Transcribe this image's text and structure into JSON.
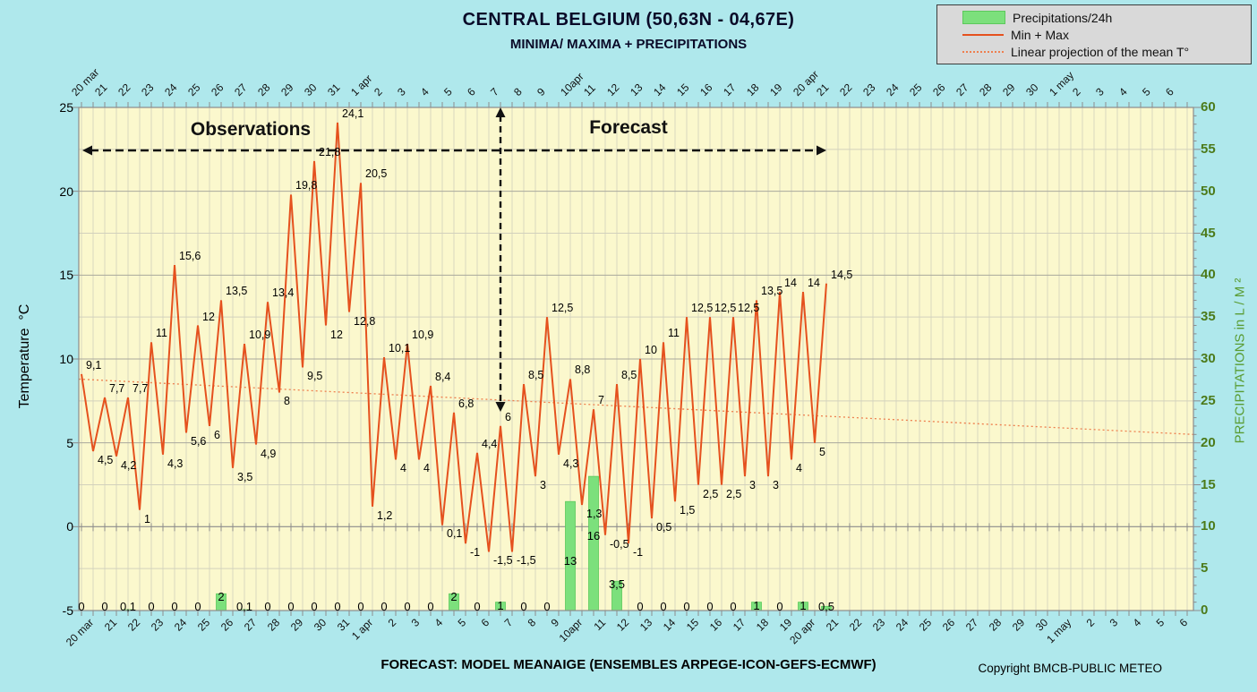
{
  "title": "CENTRAL BELGIUM (50,63N - 04,67E)",
  "subtitle": "MINIMA/ MAXIMA + PRECIPITATIONS",
  "annotations": {
    "observations": "Observations",
    "forecast": "Forecast",
    "bottom_note": "FORECAST: MODEL MEANAIGE (ENSEMBLES ARPEGE-ICON-GEFS-ECMWF)",
    "copyright": "Copyright BMCB-PUBLIC METEO"
  },
  "legend": {
    "items": [
      {
        "label": "Precipitations/24h",
        "type": "bar",
        "color": "#7ce07c"
      },
      {
        "label": "Min + Max",
        "type": "line",
        "color": "#e5511e"
      },
      {
        "label": "Linear projection of the mean T°",
        "type": "dotted-line",
        "color": "#ee7f4e"
      }
    ]
  },
  "colors": {
    "page_bg": "#afe8ec",
    "plot_bg": "#fbf8cd",
    "temp_line": "#e5511e",
    "mean_line": "#ee7f4e",
    "bar_fill": "#7ce07c",
    "bar_stroke": "#5cc95c",
    "right_axis_text": "#4c7a1a",
    "right_axis_title": "#5a9c33",
    "title_text": "#0a0a28",
    "grid_vertical": "#d9d8c0",
    "grid_major": "#a9a99c",
    "grid_minor": "#d2d1bc",
    "axis_line": "#8c8c8c",
    "arrow": "#111111"
  },
  "chart_data": {
    "type": "line+bar meteogram",
    "x_axis": {
      "labels": [
        "20 mar",
        "21",
        "22",
        "23",
        "24",
        "25",
        "26",
        "27",
        "28",
        "29",
        "30",
        "31",
        "1 apr",
        "2",
        "3",
        "4",
        "5",
        "6",
        "7",
        "8",
        "9",
        "10apr",
        "11",
        "12",
        "13",
        "14",
        "15",
        "16",
        "17",
        "18",
        "19",
        "20 apr",
        "21",
        "22",
        "23",
        "24",
        "25",
        "26",
        "27",
        "28",
        "29",
        "30",
        "1 may",
        "2",
        "3",
        "4",
        "5",
        "6"
      ]
    },
    "y_left": {
      "label": "Temperature  °C",
      "min": -5,
      "max": 25,
      "ticks": [
        25,
        20,
        15,
        10,
        5,
        0,
        -5
      ]
    },
    "y_right": {
      "label": "PRECIPITATIONS in L / M ²",
      "min": 0,
      "max": 60,
      "ticks": [
        0,
        5,
        10,
        15,
        20,
        25,
        30,
        35,
        40,
        45,
        50,
        55,
        60
      ]
    },
    "temperature": {
      "series_name": "Min + Max",
      "unit": "°C",
      "points_per_day": 2,
      "start_label": "20 mar",
      "values": [
        9.1,
        4.5,
        7.7,
        4.2,
        7.7,
        1,
        11,
        4.3,
        15.6,
        5.6,
        12,
        6,
        13.5,
        3.5,
        10.9,
        4.9,
        13.4,
        8,
        19.8,
        9.5,
        21.8,
        12,
        24.1,
        12.8,
        20.5,
        1.2,
        10.1,
        4,
        10.9,
        4,
        8.4,
        0.1,
        6.8,
        -1,
        4.4,
        -1.5,
        6,
        -1.5,
        8.5,
        3,
        12.5,
        4.3,
        8.8,
        1.3,
        7,
        -0.5,
        8.5,
        -1,
        10,
        0.5,
        11,
        1.5,
        12.5,
        2.5,
        12.5,
        2.5,
        12.5,
        3,
        13.5,
        3,
        14,
        4,
        14,
        5,
        14.5
      ],
      "point_labels": [
        "9,1",
        "4,5",
        "7,7",
        "4,2",
        "7,7",
        "1",
        "11",
        "4,3",
        "15,6",
        "5,6",
        "12",
        "6",
        "13,5",
        "3,5",
        "10,9",
        "4,9",
        "13,4",
        "8",
        "19,8",
        "9,5",
        "21,8",
        "12",
        "24,1",
        "12,8",
        "20,5",
        "1,2",
        "10,1",
        "4",
        "10,9",
        "4",
        "8,4",
        "0,1",
        "6,8",
        "-1",
        "4,4",
        "-1,5",
        "6",
        "-1,5",
        "8,5",
        "3",
        "12,5",
        "4,3",
        "8,8",
        "1,3",
        "7",
        "-0,5",
        "8,5",
        "-1",
        "10",
        "0,5",
        "11",
        "1,5",
        "12,5",
        "2,5",
        "12,5",
        "2,5",
        "12,5",
        "3",
        "13,5",
        "3",
        "14",
        "4",
        "14",
        "5",
        "14,5"
      ],
      "observation_forecast_split_label": "7"
    },
    "precipitation": {
      "series_name": "Precipitations/24h",
      "unit": "L/M²",
      "values": [
        0,
        0,
        0.1,
        0,
        0,
        0,
        2,
        0.1,
        0,
        0,
        0,
        0,
        0,
        0,
        0,
        0,
        2,
        0,
        1,
        0,
        0,
        13,
        16,
        3.5,
        0,
        0,
        0,
        0,
        0,
        1,
        0,
        1,
        0.5
      ],
      "labels": [
        "0",
        "0",
        "0,1",
        "0",
        "0",
        "0",
        "2",
        "0,1",
        "0",
        "0",
        "0",
        "0",
        "0",
        "0",
        "0",
        "0",
        "2",
        "0",
        "1",
        "0",
        "0",
        "13",
        "16",
        "3,5",
        "0",
        "0",
        "0",
        "0",
        "0",
        "1",
        "0",
        "1",
        "0,5"
      ]
    },
    "mean_projection": {
      "series_name": "Linear projection of the mean T°",
      "unit": "°C",
      "start_value": 8.8,
      "end_value": 5.5
    }
  }
}
